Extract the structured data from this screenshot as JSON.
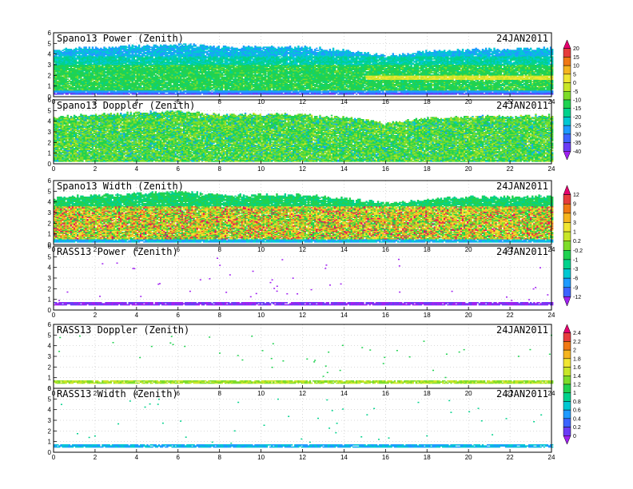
{
  "colors": [
    "#a020f0",
    "#6a3cf5",
    "#3c64ff",
    "#1e9bff",
    "#00c8d2",
    "#00d28c",
    "#20d250",
    "#7ddc2a",
    "#c8e628",
    "#f0e632",
    "#f5b41e",
    "#f07814",
    "#e63c3c",
    "#e6006e"
  ],
  "chart_data": [
    {
      "type": "heatmap",
      "title": "Spano13 Power (Zenith)",
      "date": "24JAN2011",
      "xlim": [
        0,
        24
      ],
      "ylim": [
        0,
        6
      ],
      "xticks": [
        "0",
        "2",
        "4",
        "6",
        "8",
        "10",
        "12",
        "14",
        "16",
        "18",
        "20",
        "22",
        "24"
      ],
      "yticks": [
        "0",
        "1",
        "2",
        "3",
        "4",
        "5",
        "6"
      ],
      "field": "power",
      "top_height_profile": [
        {
          "t": 0,
          "h": 4.3
        },
        {
          "t": 2,
          "h": 4.6
        },
        {
          "t": 4,
          "h": 4.7
        },
        {
          "t": 6,
          "h": 4.9
        },
        {
          "t": 8,
          "h": 4.6
        },
        {
          "t": 10,
          "h": 4.6
        },
        {
          "t": 12,
          "h": 4.6
        },
        {
          "t": 14,
          "h": 4.3
        },
        {
          "t": 16,
          "h": 3.8
        },
        {
          "t": 18,
          "h": 4.2
        },
        {
          "t": 20,
          "h": 4.4
        },
        {
          "t": 22,
          "h": 4.4
        },
        {
          "t": 24,
          "h": 4.5
        }
      ]
    },
    {
      "type": "heatmap",
      "title": "Spano13 Doppler (Zenith)",
      "date": "24JAN2011",
      "xlim": [
        0,
        24
      ],
      "ylim": [
        0,
        6
      ],
      "xticks": [
        "0",
        "2",
        "4",
        "6",
        "8",
        "10",
        "12",
        "14",
        "16",
        "18",
        "20",
        "22",
        "24"
      ],
      "yticks": [
        "0",
        "1",
        "2",
        "3",
        "4",
        "5",
        "6"
      ],
      "field": "doppler",
      "top_height_profile": [
        {
          "t": 0,
          "h": 4.3
        },
        {
          "t": 2,
          "h": 4.6
        },
        {
          "t": 4,
          "h": 4.7
        },
        {
          "t": 6,
          "h": 4.9
        },
        {
          "t": 8,
          "h": 4.6
        },
        {
          "t": 10,
          "h": 4.6
        },
        {
          "t": 12,
          "h": 4.6
        },
        {
          "t": 14,
          "h": 4.3
        },
        {
          "t": 16,
          "h": 3.8
        },
        {
          "t": 18,
          "h": 4.2
        },
        {
          "t": 20,
          "h": 4.4
        },
        {
          "t": 22,
          "h": 4.4
        },
        {
          "t": 24,
          "h": 4.5
        }
      ]
    },
    {
      "type": "heatmap",
      "title": "Spano13 Width (Zenith)",
      "date": "24JAN2011",
      "xlim": [
        0,
        24
      ],
      "ylim": [
        0,
        6
      ],
      "xticks": [
        "0",
        "2",
        "4",
        "6",
        "8",
        "10",
        "12",
        "14",
        "16",
        "18",
        "20",
        "22",
        "24"
      ],
      "yticks": [
        "0",
        "1",
        "2",
        "3",
        "4",
        "5",
        "6"
      ],
      "field": "width",
      "top_height_profile": [
        {
          "t": 0,
          "h": 4.3
        },
        {
          "t": 2,
          "h": 4.6
        },
        {
          "t": 4,
          "h": 4.7
        },
        {
          "t": 6,
          "h": 4.9
        },
        {
          "t": 8,
          "h": 4.6
        },
        {
          "t": 10,
          "h": 4.6
        },
        {
          "t": 12,
          "h": 4.6
        },
        {
          "t": 14,
          "h": 4.3
        },
        {
          "t": 16,
          "h": 3.8
        },
        {
          "t": 18,
          "h": 4.2
        },
        {
          "t": 20,
          "h": 4.4
        },
        {
          "t": 22,
          "h": 4.4
        },
        {
          "t": 24,
          "h": 4.5
        }
      ]
    },
    {
      "type": "heatmap",
      "title": "RASS13 Power (Zenith)",
      "date": "24JAN2011",
      "xlim": [
        0,
        24
      ],
      "ylim": [
        0,
        6
      ],
      "xticks": [
        "0",
        "2",
        "4",
        "6",
        "8",
        "10",
        "12",
        "14",
        "16",
        "18",
        "20",
        "22",
        "24"
      ],
      "yticks": [
        "0",
        "1",
        "2",
        "3",
        "4",
        "5",
        "6"
      ],
      "field": "rass_power",
      "band": [
        0.45,
        0.75
      ]
    },
    {
      "type": "heatmap",
      "title": "RASS13 Doppler (Zenith)",
      "date": "24JAN2011",
      "xlim": [
        0,
        24
      ],
      "ylim": [
        0,
        6
      ],
      "xticks": [
        "0",
        "2",
        "4",
        "6",
        "8",
        "10",
        "12",
        "14",
        "16",
        "18",
        "20",
        "22",
        "24"
      ],
      "yticks": [
        "0",
        "1",
        "2",
        "3",
        "4",
        "5",
        "6"
      ],
      "field": "rass_doppler",
      "band": [
        0.45,
        0.75
      ]
    },
    {
      "type": "heatmap",
      "title": "RASS13 Width (Zenith)",
      "date": "24JAN2011",
      "xlim": [
        0,
        24
      ],
      "ylim": [
        0,
        6
      ],
      "xticks": [
        "0",
        "2",
        "4",
        "6",
        "8",
        "10",
        "12",
        "14",
        "16",
        "18",
        "20",
        "22",
        "24"
      ],
      "yticks": [
        "0",
        "1",
        "2",
        "3",
        "4",
        "5",
        "6"
      ],
      "field": "rass_width",
      "band": [
        0.45,
        0.75
      ]
    }
  ],
  "colorbars": [
    {
      "name": "power-doppler",
      "labels": [
        "20",
        "15",
        "10",
        "5",
        "0",
        "-5",
        "-10",
        "-15",
        "-20",
        "-25",
        "-30",
        "-35",
        "-40"
      ]
    },
    {
      "name": "width-rasspower",
      "labels": [
        "12",
        "9",
        "6",
        "3",
        "1",
        "0.2",
        "-0.2",
        "-1",
        "-3",
        "-6",
        "-9",
        "-12"
      ]
    },
    {
      "name": "rass-doppler-width",
      "labels": [
        "2.4",
        "2.2",
        "2",
        "1.8",
        "1.6",
        "1.4",
        "1.2",
        "1",
        "0.8",
        "0.6",
        "0.4",
        "0.2",
        "0"
      ]
    }
  ]
}
